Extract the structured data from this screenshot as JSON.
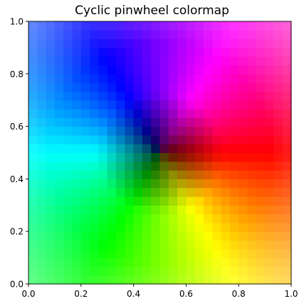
{
  "chart_data": {
    "type": "heatmap",
    "title": "Cyclic pinwheel colormap",
    "xlabel": "",
    "ylabel": "",
    "xlim": [
      0,
      1
    ],
    "ylim": [
      0,
      1
    ],
    "xticks": [
      "0.0",
      "0.2",
      "0.4",
      "0.6",
      "0.8",
      "1.0"
    ],
    "yticks": [
      "0.0",
      "0.2",
      "0.4",
      "0.6",
      "0.8",
      "1.0"
    ],
    "grid": false,
    "legend": "none",
    "colormap": "hsv",
    "center": [
      0.5,
      0.5
    ],
    "hue_direction": "clockwise",
    "hue_anchor": {
      "angle_deg": 0,
      "color": "#ff0000"
    },
    "resolution": [
      30,
      30
    ]
  }
}
